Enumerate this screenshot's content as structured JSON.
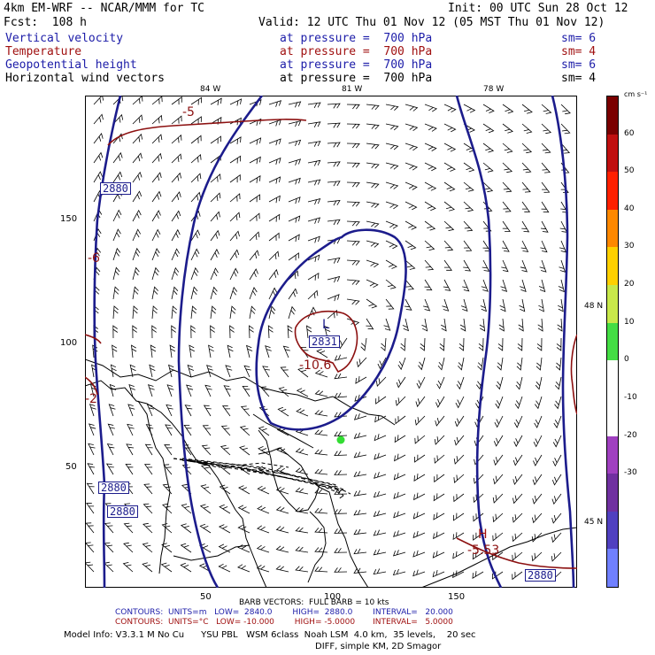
{
  "header": {
    "model": "4km EM-WRF -- NCAR/MMM for TC",
    "init": "Init: 00 UTC Sun 28 Oct 12",
    "fcst": "Fcst:  108 h",
    "valid": "Valid: 12 UTC Thu 01 Nov 12 (05 MST Thu 01 Nov 12)"
  },
  "fields": [
    {
      "name": "Vertical velocity",
      "level": "at pressure =  700 hPa",
      "sm": "sm= 6",
      "color": "blue"
    },
    {
      "name": "Temperature",
      "level": "at pressure =  700 hPa",
      "sm": "sm= 4",
      "color": "red"
    },
    {
      "name": "Geopotential height",
      "level": "at pressure =  700 hPa",
      "sm": "sm= 6",
      "color": "blue"
    },
    {
      "name": "Horizontal wind vectors",
      "level": "at pressure =  700 hPa",
      "sm": "sm= 4",
      "color": "black"
    }
  ],
  "lon_labels": [
    "84 W",
    "81 W",
    "78 W"
  ],
  "lat_labels": [
    "48 N",
    "45 N"
  ],
  "grid_y_labels": [
    "150",
    "100",
    "50"
  ],
  "grid_x_labels": [
    "50",
    "100",
    "150"
  ],
  "colorbar": {
    "unit": "cm s⁻¹",
    "labels": [
      "60",
      "50",
      "40",
      "30",
      "20",
      "10",
      "0",
      "-10",
      "-20",
      "-30"
    ],
    "colors": [
      "#7a0000",
      "#c01010",
      "#ff2000",
      "#ff8800",
      "#ffd000",
      "#c8e84a",
      "#44dd44",
      "#ffffff",
      "#ffffff",
      "#a040c0",
      "#7030a0",
      "#5040c0",
      "#7080ff"
    ]
  },
  "height_labels": [
    "2880",
    "2880",
    "2880",
    "2831",
    "2880"
  ],
  "temp_labels": [
    "-5",
    "-6",
    "-10.6",
    "-2",
    "-5.53"
  ],
  "lh_labels": [
    "L",
    "H"
  ],
  "footer": {
    "barb": "BARB VECTORS:  FULL BARB = 10 kts",
    "contours1": "CONTOURS:  UNITS=m   LOW=  2840.0        HIGH=  2880.0        INTERVAL=   20.000",
    "contours2": "CONTOURS:  UNITS=°C   LOW= -10.000        HIGH= -5.0000       INTERVAL=   5.0000",
    "model_info": "Model Info: V3.3.1 M No Cu      YSU PBL   WSM 6class  Noah LSM  4.0 km,  35 levels,    20 sec",
    "diff": "DIFF, simple KM, 2D Smagor"
  }
}
